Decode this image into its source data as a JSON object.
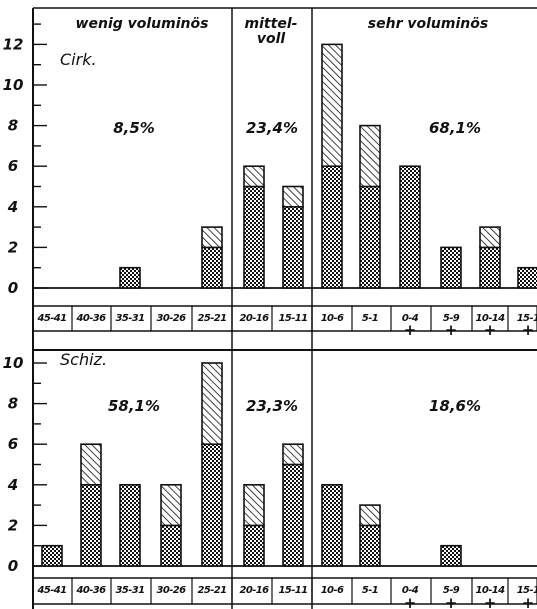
{
  "chart_data": [
    {
      "type": "bar",
      "panel": "Cirk.",
      "stacked": true,
      "categories": [
        "45-41",
        "40-36",
        "35-31",
        "30-26",
        "25-21",
        "20-16",
        "15-11",
        "10-6",
        "5-1",
        "0-4",
        "5-9",
        "10-14",
        "15-1"
      ],
      "category_marks": [
        "",
        "",
        "",
        "",
        "",
        "",
        "",
        "",
        "",
        "+",
        "+",
        "+",
        "+"
      ],
      "series": [
        {
          "pattern": "dotted",
          "values": [
            0,
            0,
            1,
            0,
            2,
            5,
            4,
            6,
            5,
            6,
            2,
            2,
            1
          ]
        },
        {
          "pattern": "hatched",
          "values": [
            0,
            0,
            0,
            0,
            1,
            1,
            1,
            6,
            3,
            0,
            0,
            1,
            0
          ]
        }
      ],
      "ylim": [
        0,
        12
      ],
      "yticks": [
        0,
        2,
        4,
        6,
        8,
        10,
        12
      ],
      "groups": [
        {
          "label": "wenig voluminös",
          "percent": "8,5%"
        },
        {
          "label": "mittel-\nvoll",
          "percent": "23,4%"
        },
        {
          "label": "sehr voluminös",
          "percent": "68,1%"
        }
      ]
    },
    {
      "type": "bar",
      "panel": "Schiz.",
      "stacked": true,
      "categories": [
        "45-41",
        "40-36",
        "35-31",
        "30-26",
        "25-21",
        "20-16",
        "15-11",
        "10-6",
        "5-1",
        "0-4",
        "5-9",
        "10-14",
        "15-1"
      ],
      "category_marks": [
        "",
        "",
        "",
        "",
        "",
        "",
        "",
        "",
        "",
        "+",
        "+",
        "+",
        "+"
      ],
      "series": [
        {
          "pattern": "dotted",
          "values": [
            1,
            4,
            4,
            2,
            6,
            2,
            5,
            4,
            2,
            0,
            1,
            0,
            0
          ]
        },
        {
          "pattern": "hatched",
          "values": [
            0,
            2,
            0,
            2,
            4,
            2,
            1,
            0,
            1,
            0,
            0,
            0,
            0
          ]
        }
      ],
      "ylim": [
        0,
        10
      ],
      "yticks": [
        0,
        2,
        4,
        6,
        8,
        10
      ],
      "groups": [
        {
          "label": "",
          "percent": "58,1%"
        },
        {
          "label": "",
          "percent": "23,3%"
        },
        {
          "label": "",
          "percent": "18,6%"
        }
      ]
    }
  ]
}
